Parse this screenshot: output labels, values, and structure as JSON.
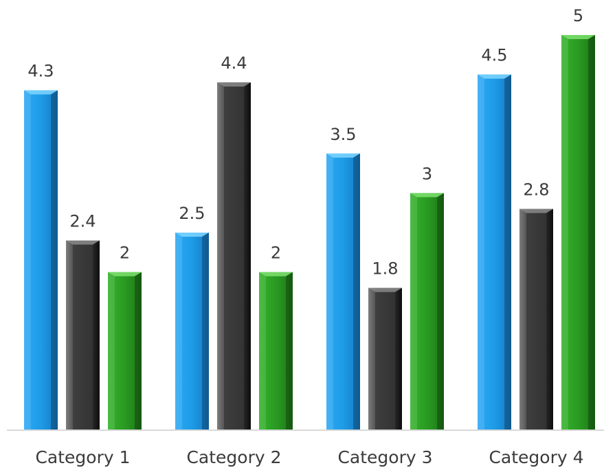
{
  "chart_data": {
    "type": "bar",
    "categories": [
      "Category 1",
      "Category 2",
      "Category 3",
      "Category 4"
    ],
    "series": [
      {
        "values": [
          4.3,
          2.5,
          3.5,
          4.5
        ],
        "color": "#1e9be6"
      },
      {
        "values": [
          2.4,
          4.4,
          1.8,
          2.8
        ],
        "color": "#3a3a3a"
      },
      {
        "values": [
          2,
          2,
          3,
          5
        ],
        "color": "#2a9a22"
      }
    ],
    "ylim": [
      0,
      5.2
    ],
    "grid": false,
    "legend": "none"
  }
}
